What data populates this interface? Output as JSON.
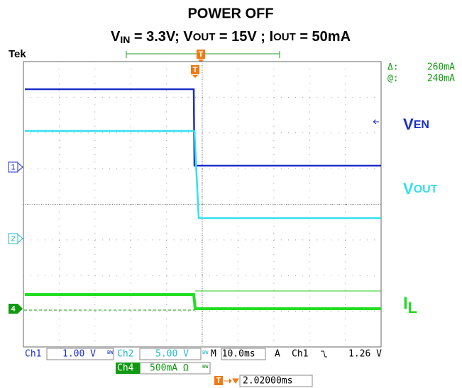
{
  "header": {
    "title": "POWER OFF",
    "subtitle": [
      {
        "text": "V"
      },
      {
        "text": "IN",
        "sub": true
      },
      {
        "text": " = 3.3V; V"
      },
      {
        "text": "OUT",
        "small": true
      },
      {
        "text": " = 15V ; I"
      },
      {
        "text": "OUT",
        "small": true
      },
      {
        "text": " = 50mA"
      }
    ]
  },
  "scope": {
    "brand": "Tek",
    "trigger_mark": "T",
    "cursor": {
      "delta_label": "Δ:",
      "delta": "260mA",
      "at_label": "@:",
      "at": "240mA"
    },
    "ground_markers": [
      "1",
      "2",
      "4"
    ],
    "labels": [
      {
        "main": "V",
        "sub": "EN"
      },
      {
        "main": "V",
        "sub": "OUT"
      },
      {
        "main": "I",
        "sub": "L"
      }
    ]
  },
  "status": {
    "ch1": "Ch1",
    "ch1_scale": "1.00 V",
    "bw1": "BW",
    "ch2": "Ch2",
    "ch2_scale": "5.00 V",
    "bw2": "BW",
    "timebase": "M 10.0ms",
    "mode": "A",
    "trig_src": "Ch1",
    "trig_level": "1.26 V",
    "ch4": "Ch4",
    "ch4_scale": "500mA Ω",
    "bw4": "BW",
    "position": "2.02000ms"
  }
}
